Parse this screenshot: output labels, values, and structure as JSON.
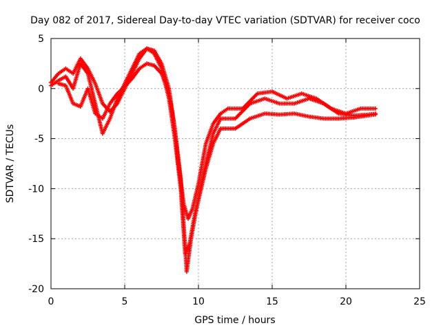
{
  "chart_data": {
    "type": "scatter",
    "title": "Day 082 of 2017, Sidereal Day-to-day VTEC variation (SDTVAR) for receiver coco",
    "xlabel": "GPS time / hours",
    "ylabel": "SDTVAR / TECUs",
    "xlim": [
      0,
      25
    ],
    "ylim": [
      -20,
      5
    ],
    "xticks": [
      "0",
      "5",
      "10",
      "15",
      "20",
      "25"
    ],
    "yticks": [
      "5",
      "0",
      "-5",
      "-10",
      "-15",
      "-20"
    ],
    "grid": true,
    "marker": "+",
    "color": "#ff0000",
    "series": [
      {
        "name": "track-1",
        "points": [
          [
            0.0,
            0.6
          ],
          [
            0.5,
            1.5
          ],
          [
            1.0,
            2.0
          ],
          [
            1.5,
            1.5
          ],
          [
            2.0,
            3.0
          ],
          [
            2.5,
            2.0
          ],
          [
            3.0,
            0.5
          ],
          [
            3.5,
            -1.5
          ],
          [
            4.0,
            -2.3
          ],
          [
            4.5,
            -1.5
          ],
          [
            5.0,
            0.0
          ],
          [
            5.5,
            1.5
          ],
          [
            6.0,
            3.0
          ],
          [
            6.5,
            4.0
          ],
          [
            7.0,
            3.8
          ],
          [
            7.5,
            2.5
          ],
          [
            8.0,
            0.0
          ],
          [
            8.3,
            -3.0
          ],
          [
            8.6,
            -7.0
          ],
          [
            9.0,
            -11.5
          ],
          [
            9.3,
            -13.0
          ],
          [
            9.6,
            -12.0
          ],
          [
            10.0,
            -9.5
          ],
          [
            10.5,
            -5.5
          ],
          [
            11.0,
            -3.5
          ],
          [
            11.5,
            -2.5
          ],
          [
            12.0,
            -2.0
          ],
          [
            13.0,
            -2.0
          ],
          [
            14.0,
            -0.5
          ],
          [
            15.0,
            -0.3
          ],
          [
            16.0,
            -1.0
          ],
          [
            17.0,
            -0.5
          ],
          [
            18.0,
            -1.0
          ],
          [
            19.0,
            -2.0
          ],
          [
            20.0,
            -2.5
          ],
          [
            21.0,
            -2.0
          ],
          [
            22.0,
            -2.0
          ]
        ]
      },
      {
        "name": "track-2",
        "points": [
          [
            0.0,
            0.3
          ],
          [
            0.5,
            0.8
          ],
          [
            1.0,
            1.2
          ],
          [
            1.5,
            0.0
          ],
          [
            2.0,
            2.5
          ],
          [
            2.5,
            1.5
          ],
          [
            3.0,
            -1.5
          ],
          [
            3.5,
            -4.5
          ],
          [
            4.0,
            -3.0
          ],
          [
            4.5,
            -1.0
          ],
          [
            5.0,
            0.5
          ],
          [
            5.5,
            2.0
          ],
          [
            6.0,
            3.5
          ],
          [
            6.5,
            4.0
          ],
          [
            7.0,
            3.5
          ],
          [
            7.5,
            2.0
          ],
          [
            8.0,
            -1.0
          ],
          [
            8.4,
            -5.0
          ],
          [
            8.8,
            -10.0
          ],
          [
            9.1,
            -16.5
          ],
          [
            9.4,
            -15.5
          ],
          [
            9.7,
            -13.0
          ],
          [
            10.0,
            -11.0
          ],
          [
            10.5,
            -7.5
          ],
          [
            11.0,
            -4.5
          ],
          [
            11.5,
            -3.0
          ],
          [
            12.5,
            -3.0
          ],
          [
            13.5,
            -1.5
          ],
          [
            14.5,
            -1.0
          ],
          [
            15.5,
            -1.5
          ],
          [
            16.5,
            -1.5
          ],
          [
            17.5,
            -1.0
          ],
          [
            18.5,
            -1.5
          ],
          [
            19.5,
            -2.5
          ],
          [
            20.5,
            -2.7
          ],
          [
            21.5,
            -2.6
          ],
          [
            22.0,
            -2.5
          ]
        ]
      },
      {
        "name": "track-3",
        "points": [
          [
            0.5,
            0.5
          ],
          [
            1.0,
            0.3
          ],
          [
            1.5,
            -1.5
          ],
          [
            2.0,
            -1.8
          ],
          [
            2.5,
            0.0
          ],
          [
            3.0,
            -2.5
          ],
          [
            3.5,
            -3.0
          ],
          [
            4.0,
            -1.5
          ],
          [
            4.5,
            -0.5
          ],
          [
            5.0,
            0.2
          ],
          [
            5.5,
            1.0
          ],
          [
            6.0,
            2.0
          ],
          [
            6.5,
            2.5
          ],
          [
            7.0,
            2.3
          ],
          [
            7.5,
            1.5
          ],
          [
            8.0,
            -0.5
          ],
          [
            8.4,
            -4.0
          ],
          [
            8.8,
            -9.0
          ],
          [
            9.2,
            -18.3
          ],
          [
            9.5,
            -15.0
          ],
          [
            9.8,
            -12.5
          ],
          [
            10.1,
            -10.5
          ],
          [
            10.5,
            -8.0
          ],
          [
            11.0,
            -5.5
          ],
          [
            11.5,
            -4.0
          ],
          [
            12.5,
            -4.0
          ],
          [
            13.5,
            -3.0
          ],
          [
            14.5,
            -2.5
          ],
          [
            15.5,
            -2.6
          ],
          [
            16.5,
            -2.5
          ],
          [
            17.5,
            -2.8
          ],
          [
            18.5,
            -3.0
          ],
          [
            19.5,
            -3.0
          ],
          [
            20.5,
            -2.9
          ],
          [
            21.5,
            -2.7
          ],
          [
            22.0,
            -2.6
          ]
        ]
      }
    ]
  }
}
